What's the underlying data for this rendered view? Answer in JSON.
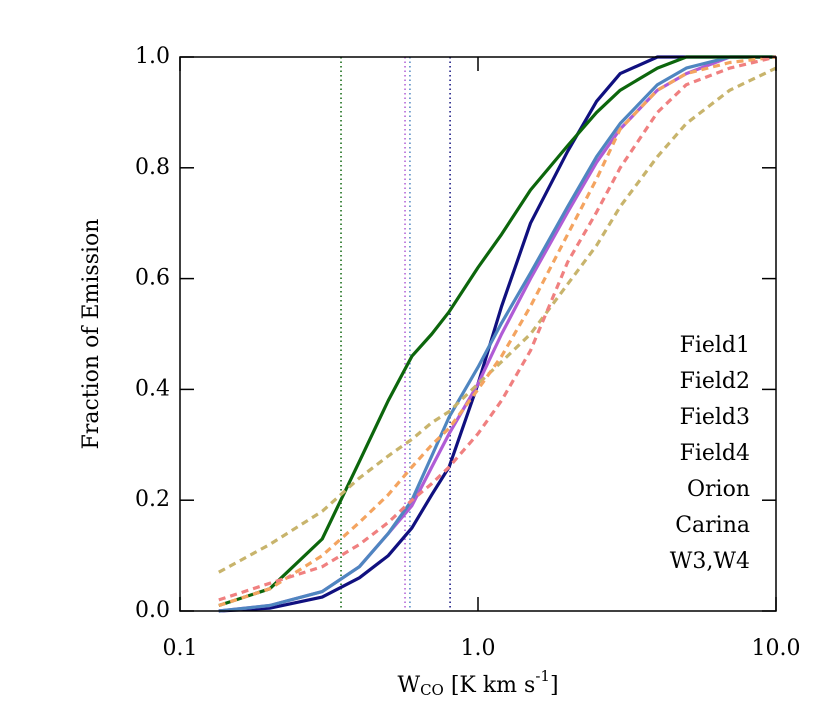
{
  "chart_data": {
    "type": "line",
    "ylabel": "Fraction of Emission",
    "xlabel": {
      "main": "W",
      "sub": "CO",
      "unit": " [K km s",
      "sup": "-1",
      "close": "]"
    },
    "xscale": "log",
    "xlim": [
      0.1,
      10
    ],
    "xticks": [
      0.1,
      {
        "value": 1,
        "label": "1.0"
      },
      {
        "value": 10,
        "label": "10.0"
      }
    ],
    "ylim": [
      0,
      1
    ],
    "yticks": [
      {
        "value": 0,
        "label": "0.0"
      },
      0.2,
      0.4,
      0.6,
      0.8,
      {
        "value": 1,
        "label": "1.0"
      }
    ],
    "legend": "right",
    "x": [
      0.135,
      0.2,
      0.3,
      0.4,
      0.5,
      0.6,
      0.7,
      0.8,
      1.0,
      1.2,
      1.5,
      2,
      2.5,
      3,
      4,
      5,
      7,
      10
    ],
    "series": [
      {
        "name": "Field1",
        "color": "#10107f",
        "style": "solid",
        "values": [
          0,
          0.005,
          0.025,
          0.06,
          0.1,
          0.15,
          0.21,
          0.26,
          0.41,
          0.55,
          0.7,
          0.83,
          0.92,
          0.97,
          1,
          1,
          1,
          1
        ]
      },
      {
        "name": "Field2",
        "color": "#b05cd6",
        "style": "solid",
        "values": [
          0,
          0.01,
          0.035,
          0.08,
          0.14,
          0.19,
          0.26,
          0.32,
          0.41,
          0.5,
          0.6,
          0.72,
          0.81,
          0.87,
          0.94,
          0.97,
          1,
          1
        ]
      },
      {
        "name": "Field3",
        "color": "#4f86c0",
        "style": "solid",
        "values": [
          0,
          0.01,
          0.035,
          0.08,
          0.14,
          0.2,
          0.28,
          0.35,
          0.44,
          0.52,
          0.61,
          0.73,
          0.82,
          0.88,
          0.95,
          0.98,
          1,
          1
        ]
      },
      {
        "name": "Field4",
        "color": "#0c660c",
        "style": "solid",
        "values": [
          0.01,
          0.04,
          0.13,
          0.27,
          0.38,
          0.46,
          0.5,
          0.54,
          0.62,
          0.68,
          0.76,
          0.84,
          0.9,
          0.94,
          0.98,
          1,
          1,
          1
        ]
      },
      {
        "name": "Orion",
        "color": "#c8b46c",
        "style": "dashed",
        "values": [
          0.07,
          0.12,
          0.18,
          0.24,
          0.28,
          0.31,
          0.34,
          0.36,
          0.41,
          0.45,
          0.5,
          0.59,
          0.66,
          0.73,
          0.82,
          0.88,
          0.94,
          0.98
        ]
      },
      {
        "name": "Carina",
        "color": "#f4a460",
        "style": "dashed",
        "values": [
          0.01,
          0.04,
          0.1,
          0.16,
          0.21,
          0.26,
          0.3,
          0.33,
          0.4,
          0.46,
          0.55,
          0.68,
          0.78,
          0.87,
          0.94,
          0.97,
          0.99,
          1
        ]
      },
      {
        "name": "W3,W4",
        "color": "#f08080",
        "style": "dashed",
        "values": [
          0.02,
          0.05,
          0.08,
          0.12,
          0.16,
          0.2,
          0.23,
          0.26,
          0.32,
          0.38,
          0.47,
          0.63,
          0.72,
          0.8,
          0.9,
          0.95,
          0.98,
          1
        ]
      }
    ],
    "vlines": [
      {
        "x": 0.347,
        "color": "#0c660c"
      },
      {
        "x": 0.569,
        "color": "#b05cd6"
      },
      {
        "x": 0.591,
        "color": "#4f86c0"
      },
      {
        "x": 0.806,
        "color": "#10107f"
      }
    ]
  }
}
